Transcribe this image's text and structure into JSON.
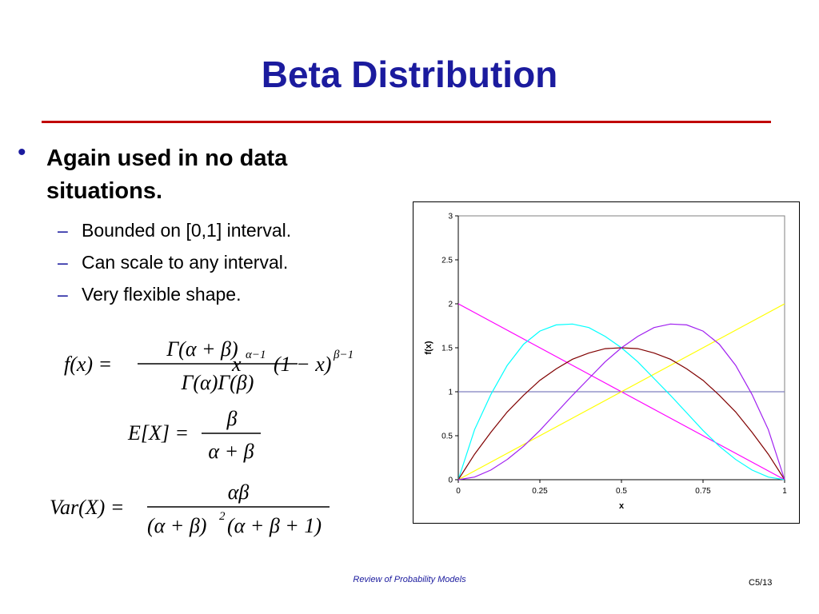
{
  "slide": {
    "title": "Beta Distribution",
    "bullet": "Again used in no data situations.",
    "subbullets": [
      "Bounded on [0,1] interval.",
      "Can scale to any interval.",
      "Very flexible shape."
    ],
    "dash": "–",
    "footer": "Review of Probability Models",
    "page": "C5/13",
    "colors": {
      "title": "#1b1b9e",
      "rule": "#c00000"
    }
  },
  "equations": {
    "pdf": {
      "lhs": "f(x) =",
      "numerator": "Γ(α + β)",
      "denominator": "Γ(α)Γ(β)",
      "rhs_x": "x",
      "rhs_x_exp": "α−1",
      "rhs_factor": "(1 − x)",
      "rhs_factor_exp": "β−1"
    },
    "mean": {
      "lhs": "E[X] =",
      "numerator": "β",
      "denominator": "α + β"
    },
    "variance": {
      "lhs": "Var(X) =",
      "numerator": "αβ",
      "denominator_a": "(α + β)",
      "denominator_exp": "2",
      "denominator_b": "(α + β + 1)"
    }
  },
  "chart_data": {
    "type": "line",
    "xlabel": "x",
    "ylabel": "f(x)",
    "xlim": [
      0,
      1
    ],
    "ylim": [
      0,
      3
    ],
    "xticks": [
      "0",
      "0.25",
      "0.5",
      "0.75",
      "1"
    ],
    "yticks": [
      "0",
      "0.5",
      "1",
      "1.5",
      "2",
      "2.5",
      "3"
    ],
    "grid": false,
    "x": [
      0,
      0.05,
      0.1,
      0.15,
      0.2,
      0.25,
      0.3,
      0.35,
      0.4,
      0.45,
      0.5,
      0.55,
      0.6,
      0.65,
      0.7,
      0.75,
      0.8,
      0.85,
      0.9,
      0.95,
      1
    ],
    "series": [
      {
        "color": "#7f7fbf",
        "values": [
          1,
          1,
          1,
          1,
          1,
          1,
          1,
          1,
          1,
          1,
          1,
          1,
          1,
          1,
          1,
          1,
          1,
          1,
          1,
          1,
          1
        ]
      },
      {
        "color": "#ff00ff",
        "values": [
          2,
          1.9,
          1.8,
          1.7,
          1.6,
          1.5,
          1.4,
          1.3,
          1.2,
          1.1,
          1,
          0.9,
          0.8,
          0.7,
          0.6,
          0.5,
          0.4,
          0.3,
          0.2,
          0.1,
          0
        ]
      },
      {
        "color": "#ffff00",
        "values": [
          0,
          0.1,
          0.2,
          0.3,
          0.4,
          0.5,
          0.6,
          0.7,
          0.8,
          0.9,
          1,
          1.1,
          1.2,
          1.3,
          1.4,
          1.5,
          1.6,
          1.7,
          1.8,
          1.9,
          2
        ]
      },
      {
        "color": "#00ffff",
        "values": [
          0,
          0.57,
          0.97,
          1.3,
          1.54,
          1.69,
          1.76,
          1.77,
          1.73,
          1.63,
          1.5,
          1.34,
          1.15,
          0.96,
          0.76,
          0.56,
          0.38,
          0.23,
          0.11,
          0.03,
          0
        ]
      },
      {
        "color": "#800000",
        "values": [
          0,
          0.29,
          0.54,
          0.77,
          0.96,
          1.13,
          1.26,
          1.37,
          1.44,
          1.49,
          1.5,
          1.49,
          1.44,
          1.37,
          1.26,
          1.13,
          0.96,
          0.77,
          0.54,
          0.29,
          0
        ]
      },
      {
        "color": "#a020f0",
        "values": [
          0,
          0.03,
          0.11,
          0.23,
          0.38,
          0.56,
          0.76,
          0.96,
          1.15,
          1.34,
          1.5,
          1.63,
          1.73,
          1.77,
          1.76,
          1.69,
          1.54,
          1.3,
          0.97,
          0.57,
          0
        ]
      }
    ]
  }
}
